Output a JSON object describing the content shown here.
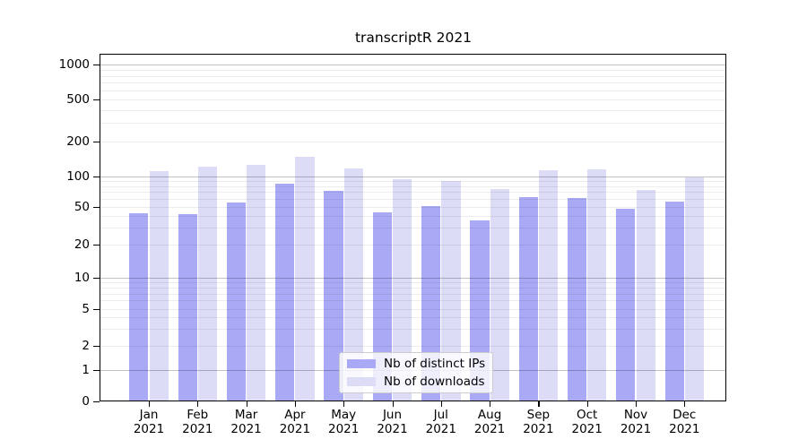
{
  "chart_data": {
    "type": "bar",
    "title": "transcriptR 2021",
    "xlabel": "",
    "ylabel": "",
    "scale": "log-like (symlog), ticks at 0,1,2,5,10,20,50,100,200,500,1000",
    "grid": "on (minor light, major darker, drawn over bars)",
    "legend_position": "lower center inside plot",
    "categories": [
      "Jan 2021",
      "Feb 2021",
      "Mar 2021",
      "Apr 2021",
      "May 2021",
      "Jun 2021",
      "Jul 2021",
      "Aug 2021",
      "Sep 2021",
      "Oct 2021",
      "Nov 2021",
      "Dec 2021"
    ],
    "yticks": [
      0,
      1,
      2,
      5,
      10,
      20,
      50,
      100,
      200,
      500,
      1000
    ],
    "ylim": [
      0,
      1000
    ],
    "series": [
      {
        "name": "Nb of distinct IPs",
        "color": "#a9a9f6",
        "values": [
          43,
          42,
          55,
          84,
          72,
          44,
          51,
          36,
          63,
          61,
          48,
          56
        ]
      },
      {
        "name": "Nb of downloads",
        "color": "#dcdcf7",
        "values": [
          110,
          122,
          126,
          148,
          118,
          94,
          89,
          75,
          113,
          115,
          73,
          97
        ]
      }
    ]
  },
  "legend": {
    "item1": "Nb of distinct IPs",
    "item2": "Nb of downloads"
  },
  "colors": {
    "ips_bar": "#a9a9f6",
    "downloads_bar": "#dcdcf7",
    "spine": "#000000",
    "background": "#ffffff"
  }
}
